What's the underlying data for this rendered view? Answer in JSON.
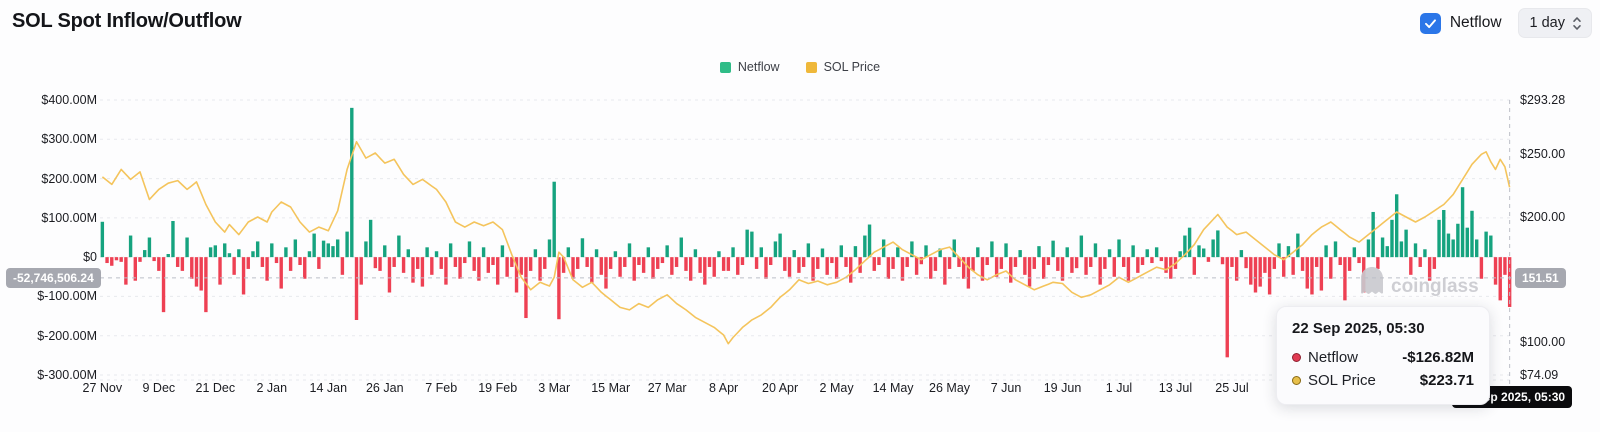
{
  "header": {
    "title": "SOL Spot Inflow/Outflow",
    "netflow_toggle_label": "Netflow",
    "netflow_toggle_checked": true,
    "interval_value": "1 day"
  },
  "legend": {
    "items": [
      {
        "label": "Netflow",
        "color": "#2fbc87"
      },
      {
        "label": "SOL Price",
        "color": "#efb83a"
      }
    ]
  },
  "watermark": {
    "brand": "coinglass"
  },
  "crosshair": {
    "netflow_badge": "-52,746,506.24",
    "price_badge": "151.51",
    "date_badge": "22 Sep 2025, 05:30",
    "netflow_value_m": -52.746506,
    "price_value": 151.51
  },
  "tooltip": {
    "date": "22 Sep 2025, 05:30",
    "rows": [
      {
        "label": "Netflow",
        "value": "-$126.82M",
        "dot_fill": "#e03a52",
        "dot_ring": "#8f2030"
      },
      {
        "label": "SOL Price",
        "value": "$223.71",
        "dot_fill": "#e7bf4a",
        "dot_ring": "#8a6b16"
      }
    ]
  },
  "chart_data": {
    "type": "bar+line",
    "title": "SOL Spot Inflow/Outflow",
    "days": 300,
    "start_label": "27 Nov",
    "end_label": "22 Sep 2025, 05:30",
    "grid": true,
    "legend_position": "top-center",
    "left_axis": {
      "unit": "USD",
      "max_m": 400,
      "min_m": -300,
      "ticks": [
        {
          "label": "$400.00M",
          "value": 400
        },
        {
          "label": "$300.00M",
          "value": 300
        },
        {
          "label": "$200.00M",
          "value": 200
        },
        {
          "label": "$100.00M",
          "value": 100
        },
        {
          "label": "$0",
          "value": 0
        },
        {
          "label": "$-100.00M",
          "value": -100
        },
        {
          "label": "$-200.00M",
          "value": -200
        },
        {
          "label": "$-300.00M",
          "value": -300
        }
      ]
    },
    "right_axis": {
      "unit": "USD",
      "max": 293.28,
      "min": 74.09,
      "ticks": [
        {
          "label": "$293.28",
          "value": 293.28
        },
        {
          "label": "$250.00",
          "value": 250
        },
        {
          "label": "$200.00",
          "value": 200
        },
        {
          "label": "$100.00",
          "value": 100
        },
        {
          "label": "$74.09",
          "value": 74.09
        }
      ]
    },
    "x_ticks": [
      {
        "label": "27 Nov",
        "day": 0
      },
      {
        "label": "9 Dec",
        "day": 12
      },
      {
        "label": "21 Dec",
        "day": 24
      },
      {
        "label": "2 Jan",
        "day": 36
      },
      {
        "label": "14 Jan",
        "day": 48
      },
      {
        "label": "26 Jan",
        "day": 60
      },
      {
        "label": "7 Feb",
        "day": 72
      },
      {
        "label": "19 Feb",
        "day": 84
      },
      {
        "label": "3 Mar",
        "day": 96
      },
      {
        "label": "15 Mar",
        "day": 108
      },
      {
        "label": "27 Mar",
        "day": 120
      },
      {
        "label": "8 Apr",
        "day": 132
      },
      {
        "label": "20 Apr",
        "day": 144
      },
      {
        "label": "2 May",
        "day": 156
      },
      {
        "label": "14 May",
        "day": 168
      },
      {
        "label": "26 May",
        "day": 180
      },
      {
        "label": "7 Jun",
        "day": 192
      },
      {
        "label": "19 Jun",
        "day": 204
      },
      {
        "label": "1 Jul",
        "day": 216
      },
      {
        "label": "13 Jul",
        "day": 228
      },
      {
        "label": "25 Jul",
        "day": 240
      }
    ],
    "colors": {
      "bar_up": "#16a37f",
      "bar_down": "#ee4053",
      "price_line": "#f4c45c",
      "grid": "#e8e9ed",
      "crosshair": "#bcbfc7"
    },
    "series": [
      {
        "name": "Netflow",
        "type": "bar",
        "unit": "M USD"
      },
      {
        "name": "SOL Price",
        "type": "line",
        "unit": "USD"
      }
    ],
    "netflow_m_usd": [
      90,
      -15,
      -22,
      -8,
      -12,
      -70,
      55,
      -60,
      -12,
      18,
      50,
      -10,
      -35,
      -140,
      8,
      92,
      -25,
      -35,
      50,
      -55,
      -75,
      -85,
      -140,
      25,
      30,
      -70,
      35,
      10,
      -45,
      20,
      -95,
      -30,
      15,
      40,
      -25,
      -60,
      35,
      -15,
      -80,
      25,
      -35,
      45,
      -20,
      -55,
      15,
      60,
      -30,
      42,
      35,
      28,
      45,
      -45,
      65,
      380,
      -160,
      -70,
      40,
      95,
      -28,
      -35,
      30,
      -90,
      -25,
      55,
      -40,
      20,
      -65,
      -30,
      -75,
      25,
      -45,
      15,
      -30,
      -70,
      35,
      -25,
      -55,
      -15,
      40,
      -35,
      -60,
      25,
      -40,
      -20,
      -70,
      30,
      -50,
      -25,
      -90,
      -45,
      -155,
      -35,
      20,
      -60,
      -30,
      45,
      192,
      -158,
      -40,
      25,
      -55,
      -30,
      48,
      -25,
      -65,
      20,
      -45,
      -80,
      -30,
      15,
      -50,
      -25,
      35,
      -60,
      -20,
      -40,
      25,
      -55,
      -30,
      -15,
      30,
      -45,
      -25,
      50,
      -35,
      -60,
      20,
      -40,
      -70,
      -25,
      -50,
      15,
      -35,
      -35,
      25,
      -45,
      -20,
      70,
      65,
      -30,
      25,
      -55,
      -20,
      40,
      60,
      -35,
      -50,
      18,
      -40,
      -25,
      35,
      -60,
      -30,
      22,
      -45,
      -15,
      -55,
      30,
      -25,
      -65,
      28,
      -40,
      55,
      83,
      -35,
      -20,
      45,
      -55,
      -30,
      25,
      -60,
      -25,
      40,
      -45,
      -18,
      30,
      -55,
      -35,
      22,
      -70,
      -30,
      45,
      -25,
      -55,
      -80,
      -35,
      25,
      -60,
      -20,
      40,
      -50,
      -30,
      35,
      -65,
      -25,
      18,
      -45,
      -75,
      -30,
      28,
      -55,
      -20,
      42,
      -35,
      -60,
      25,
      -40,
      -28,
      55,
      -45,
      -25,
      35,
      -70,
      -30,
      20,
      -50,
      45,
      -25,
      -60,
      30,
      -40,
      -20,
      20,
      -15,
      25,
      -10,
      -40,
      -55,
      -30,
      15,
      55,
      75,
      -45,
      30,
      22,
      -12,
      45,
      68,
      -18,
      -255,
      -25,
      -60,
      18,
      -28,
      -70,
      -90,
      -75,
      -40,
      -95,
      -30,
      35,
      -50,
      28,
      -45,
      60,
      -35,
      -80,
      -95,
      -25,
      -85,
      30,
      -55,
      40,
      -20,
      -110,
      -35,
      25,
      -15,
      -90,
      45,
      115,
      -30,
      50,
      28,
      95,
      160,
      40,
      70,
      -45,
      35,
      -25,
      20,
      -60,
      -30,
      95,
      120,
      60,
      45,
      85,
      178,
      75,
      118,
      45,
      -55,
      65,
      55,
      -70,
      -110,
      -45,
      -126.82
    ],
    "price_points": [
      [
        0,
        232
      ],
      [
        2,
        226
      ],
      [
        4,
        238
      ],
      [
        6,
        230
      ],
      [
        8,
        236
      ],
      [
        10,
        214
      ],
      [
        12,
        222
      ],
      [
        14,
        227
      ],
      [
        16,
        229
      ],
      [
        18,
        222
      ],
      [
        20,
        228
      ],
      [
        22,
        210
      ],
      [
        24,
        196
      ],
      [
        26,
        188
      ],
      [
        27,
        194
      ],
      [
        29,
        186
      ],
      [
        31,
        196
      ],
      [
        33,
        200
      ],
      [
        35,
        196
      ],
      [
        36,
        204
      ],
      [
        38,
        212
      ],
      [
        40,
        208
      ],
      [
        42,
        196
      ],
      [
        44,
        188
      ],
      [
        46,
        192
      ],
      [
        48,
        189
      ],
      [
        50,
        205
      ],
      [
        52,
        238
      ],
      [
        54,
        260
      ],
      [
        56,
        247
      ],
      [
        58,
        251
      ],
      [
        60,
        243
      ],
      [
        62,
        246
      ],
      [
        64,
        234
      ],
      [
        66,
        226
      ],
      [
        68,
        230
      ],
      [
        71,
        222
      ],
      [
        73,
        212
      ],
      [
        75,
        196
      ],
      [
        77,
        192
      ],
      [
        79,
        196
      ],
      [
        81,
        193
      ],
      [
        83,
        196
      ],
      [
        85,
        190
      ],
      [
        87,
        170
      ],
      [
        89,
        152
      ],
      [
        91,
        142
      ],
      [
        93,
        148
      ],
      [
        95,
        145
      ],
      [
        96,
        152
      ],
      [
        97,
        172
      ],
      [
        98,
        168
      ],
      [
        100,
        150
      ],
      [
        102,
        144
      ],
      [
        104,
        148
      ],
      [
        106,
        140
      ],
      [
        108,
        134
      ],
      [
        110,
        128
      ],
      [
        112,
        126
      ],
      [
        114,
        131
      ],
      [
        116,
        128
      ],
      [
        118,
        134
      ],
      [
        120,
        138
      ],
      [
        122,
        131
      ],
      [
        124,
        126
      ],
      [
        126,
        120
      ],
      [
        128,
        116
      ],
      [
        130,
        112
      ],
      [
        132,
        106
      ],
      [
        133,
        99
      ],
      [
        134,
        104
      ],
      [
        136,
        112
      ],
      [
        138,
        118
      ],
      [
        140,
        122
      ],
      [
        142,
        128
      ],
      [
        144,
        136
      ],
      [
        146,
        142
      ],
      [
        148,
        150
      ],
      [
        150,
        147
      ],
      [
        152,
        149
      ],
      [
        154,
        146
      ],
      [
        156,
        148
      ],
      [
        158,
        152
      ],
      [
        160,
        158
      ],
      [
        162,
        165
      ],
      [
        164,
        172
      ],
      [
        166,
        176
      ],
      [
        168,
        180
      ],
      [
        170,
        174
      ],
      [
        172,
        170
      ],
      [
        174,
        166
      ],
      [
        176,
        170
      ],
      [
        178,
        174
      ],
      [
        180,
        176
      ],
      [
        182,
        168
      ],
      [
        184,
        160
      ],
      [
        186,
        154
      ],
      [
        188,
        150
      ],
      [
        190,
        154
      ],
      [
        192,
        157
      ],
      [
        194,
        150
      ],
      [
        196,
        146
      ],
      [
        198,
        142
      ],
      [
        200,
        145
      ],
      [
        202,
        148
      ],
      [
        204,
        147
      ],
      [
        206,
        140
      ],
      [
        208,
        136
      ],
      [
        210,
        138
      ],
      [
        212,
        142
      ],
      [
        214,
        146
      ],
      [
        216,
        152
      ],
      [
        218,
        148
      ],
      [
        220,
        152
      ],
      [
        222,
        156
      ],
      [
        224,
        160
      ],
      [
        226,
        158
      ],
      [
        228,
        163
      ],
      [
        230,
        170
      ],
      [
        232,
        178
      ],
      [
        234,
        190
      ],
      [
        236,
        198
      ],
      [
        237,
        202
      ],
      [
        239,
        192
      ],
      [
        241,
        186
      ],
      [
        243,
        188
      ],
      [
        245,
        182
      ],
      [
        247,
        176
      ],
      [
        249,
        170
      ],
      [
        251,
        166
      ],
      [
        253,
        172
      ],
      [
        255,
        178
      ],
      [
        257,
        186
      ],
      [
        259,
        192
      ],
      [
        261,
        196
      ],
      [
        263,
        190
      ],
      [
        265,
        184
      ],
      [
        267,
        180
      ],
      [
        269,
        186
      ],
      [
        271,
        192
      ],
      [
        273,
        198
      ],
      [
        275,
        204
      ],
      [
        277,
        200
      ],
      [
        279,
        196
      ],
      [
        281,
        200
      ],
      [
        283,
        205
      ],
      [
        285,
        210
      ],
      [
        287,
        218
      ],
      [
        289,
        230
      ],
      [
        291,
        242
      ],
      [
        293,
        250
      ],
      [
        294,
        252
      ],
      [
        295,
        244
      ],
      [
        296,
        238
      ],
      [
        297,
        246
      ],
      [
        298,
        240
      ],
      [
        299,
        223.71
      ]
    ]
  }
}
